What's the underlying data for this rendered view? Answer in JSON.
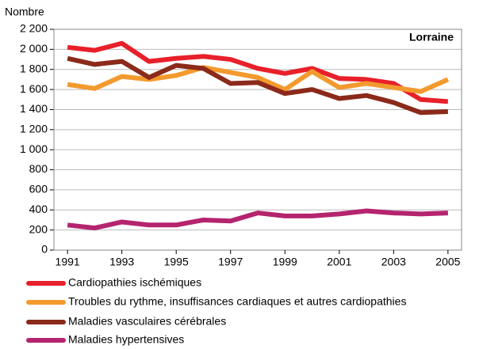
{
  "chart_data": {
    "type": "line",
    "y_label": "Nombre",
    "annotation": "Lorraine",
    "x": [
      1991,
      1992,
      1993,
      1994,
      1995,
      1996,
      1997,
      1998,
      1999,
      2000,
      2001,
      2002,
      2003,
      2004,
      2005
    ],
    "xlim": [
      1990.5,
      2005.5
    ],
    "xticks": [
      1991,
      1993,
      1995,
      1997,
      1999,
      2001,
      2003,
      2005
    ],
    "ylim": [
      0,
      2200
    ],
    "yticks": [
      0,
      200,
      400,
      600,
      800,
      {
        "value": 1000,
        "label": "1 000"
      },
      {
        "value": 1200,
        "label": "1 200"
      },
      {
        "value": 1400,
        "label": "1 400"
      },
      {
        "value": 1600,
        "label": "1 600"
      },
      {
        "value": 1800,
        "label": "1 800"
      },
      {
        "value": 2000,
        "label": "2 000"
      },
      {
        "value": 2200,
        "label": "2 200"
      }
    ],
    "grid": true,
    "series": [
      {
        "name": "Cardiopathies ischémiques",
        "color": "#e8202a",
        "values": [
          2020,
          1990,
          2060,
          1880,
          1910,
          1930,
          1900,
          1810,
          1760,
          1810,
          1710,
          1700,
          1660,
          1500,
          1480
        ]
      },
      {
        "name": "Troubles du rythme, insuffisances cardiaques et autres cardiopathies",
        "color": "#f39a2e",
        "values": [
          1650,
          1610,
          1730,
          1700,
          1740,
          1820,
          1770,
          1720,
          1600,
          1780,
          1620,
          1660,
          1620,
          1580,
          1700
        ]
      },
      {
        "name": "Maladies vasculaires cérébrales",
        "color": "#8b2a1a",
        "values": [
          1910,
          1850,
          1880,
          1720,
          1840,
          1810,
          1660,
          1670,
          1560,
          1600,
          1510,
          1540,
          1470,
          1370,
          1380
        ]
      },
      {
        "name": "Maladies hypertensives",
        "color": "#b5246e",
        "values": [
          250,
          220,
          280,
          250,
          250,
          300,
          290,
          370,
          340,
          340,
          360,
          390,
          370,
          360,
          370
        ]
      }
    ]
  }
}
